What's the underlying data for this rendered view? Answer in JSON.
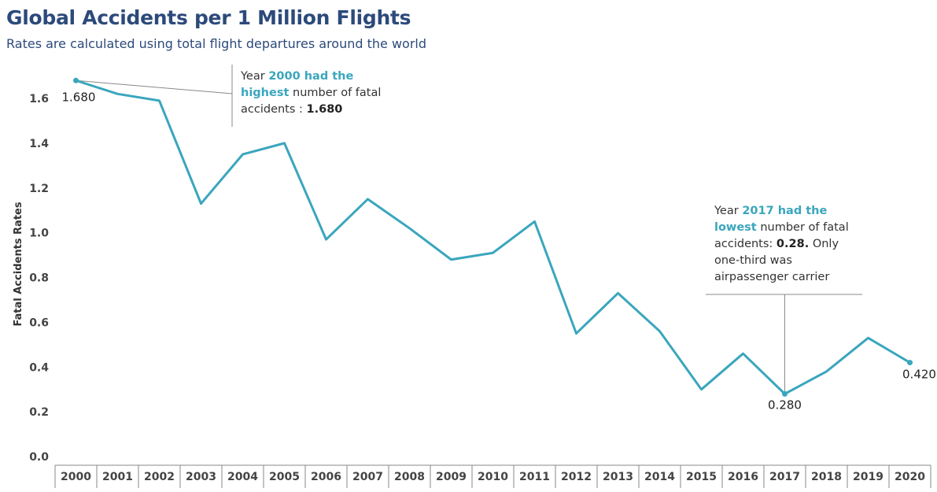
{
  "chart_data": {
    "type": "line",
    "title": "Global Accidents per 1 Million Flights",
    "subtitle": "Rates are calculated using total flight departures around the world",
    "ylabel": "Fatal Accidents Rates",
    "xlabel": "",
    "ylim": [
      0.0,
      1.75
    ],
    "yticks": [
      "0.0",
      "0.2",
      "0.4",
      "0.6",
      "0.8",
      "1.0",
      "1.2",
      "1.4",
      "1.6"
    ],
    "categories": [
      "2000",
      "2001",
      "2002",
      "2003",
      "2004",
      "2005",
      "2006",
      "2007",
      "2008",
      "2009",
      "2010",
      "2011",
      "2012",
      "2013",
      "2014",
      "2015",
      "2016",
      "2017",
      "2018",
      "2019",
      "2020"
    ],
    "values": [
      1.68,
      1.62,
      1.59,
      1.13,
      1.35,
      1.4,
      0.97,
      1.15,
      1.02,
      0.88,
      0.91,
      1.05,
      0.55,
      0.73,
      0.56,
      0.3,
      0.46,
      0.28,
      0.38,
      0.53,
      0.42
    ],
    "grid": false,
    "line_color": "#3aa6bd",
    "point_labels": [
      {
        "index": 0,
        "text": "1.680"
      },
      {
        "index": 17,
        "text": "0.280"
      },
      {
        "index": 20,
        "text": "0.420"
      }
    ],
    "annotations": [
      {
        "prefix": "Year ",
        "highlight": "2000 had the highest",
        "mid": " number of fatal accidents : ",
        "value": "1.680",
        "suffix": ""
      },
      {
        "prefix": "Year ",
        "highlight": "2017 had the lowest",
        "mid": " number of fatal accidents: ",
        "value": "0.28.",
        "suffix": " Only one-third was airpassenger carrier"
      }
    ]
  }
}
